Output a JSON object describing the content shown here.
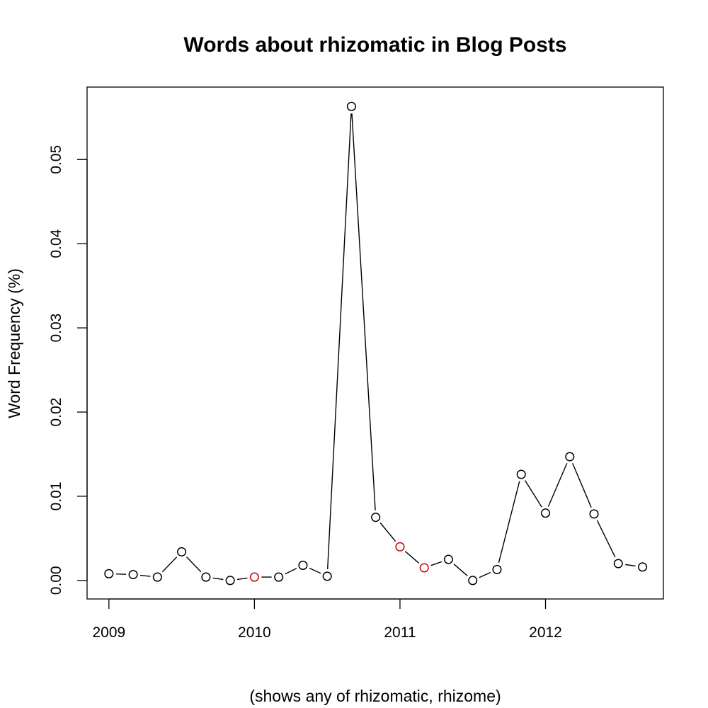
{
  "chart_data": {
    "type": "line",
    "title": "Words about rhizomatic in Blog Posts",
    "xlabel": "(shows any of rhizomatic, rhizome)",
    "ylabel": "Word Frequency (%)",
    "xlim": [
      2008.85,
      2012.81
    ],
    "ylim": [
      -0.0022,
      0.0586
    ],
    "x_ticks": [
      "2009",
      "2010",
      "2011",
      "2012"
    ],
    "y_ticks": [
      "0.00",
      "0.01",
      "0.02",
      "0.03",
      "0.04",
      "0.05"
    ],
    "series": [
      {
        "name": "rhizomatic",
        "x": [
          2009.0,
          2009.1667,
          2009.3333,
          2009.5,
          2009.6667,
          2009.8333,
          2010.0,
          2010.1667,
          2010.3333,
          2010.5,
          2010.6667,
          2010.8333,
          2011.0,
          2011.1667,
          2011.3333,
          2011.5,
          2011.6667,
          2011.8333,
          2012.0,
          2012.1667,
          2012.3333,
          2012.5,
          2012.6667
        ],
        "values": [
          0.0008,
          0.0007,
          0.0004,
          0.0034,
          0.0004,
          0.0,
          0.0004,
          0.0004,
          0.0018,
          0.0005,
          0.0563,
          0.0075,
          0.004,
          0.0015,
          0.0025,
          0.0,
          0.0013,
          0.0126,
          0.008,
          0.0147,
          0.0079,
          0.002,
          0.0016
        ],
        "highlighted": [
          false,
          false,
          false,
          false,
          false,
          false,
          true,
          false,
          false,
          false,
          false,
          false,
          true,
          true,
          false,
          false,
          false,
          false,
          false,
          false,
          false,
          false,
          false
        ]
      }
    ],
    "colors": {
      "line": "#000000",
      "point": "#000000",
      "highlight": "#cc0000"
    }
  }
}
